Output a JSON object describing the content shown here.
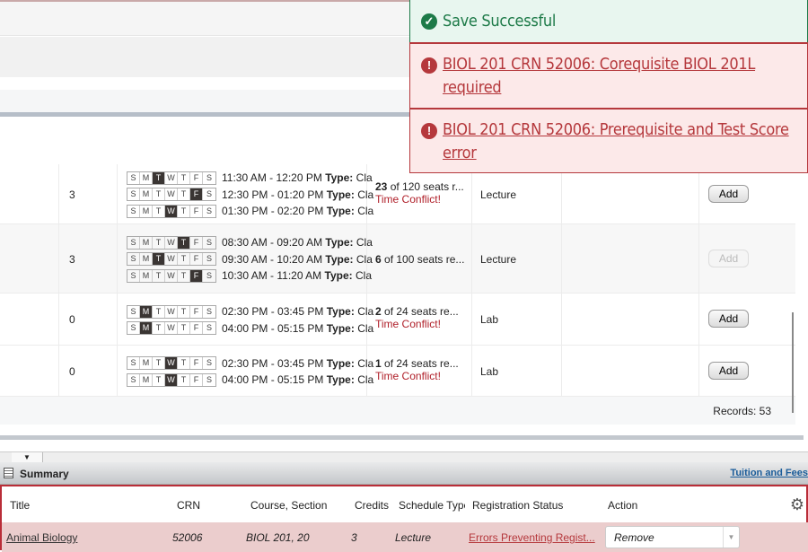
{
  "notifications": [
    {
      "type": "success",
      "text": "Save Successful",
      "icon": "check-circle-icon",
      "color": "#1d7a48"
    },
    {
      "type": "error",
      "text": "BIOL 201 CRN 52006: Corequisite BIOL 201L required",
      "icon": "exclamation-circle-icon",
      "color": "#b5383c"
    },
    {
      "type": "error",
      "text": "BIOL 201 CRN 52006: Prerequisite and Test Score error",
      "icon": "exclamation-circle-icon",
      "color": "#b5383c"
    }
  ],
  "day_letters": [
    "S",
    "M",
    "T",
    "W",
    "T",
    "F",
    "S"
  ],
  "results": {
    "rows": [
      {
        "credits": "3",
        "meetings": [
          {
            "day": 2,
            "time": "11:30 AM - 12:20 PM",
            "type_label": "Type:",
            "type": "Cla"
          },
          {
            "day": 5,
            "time": "12:30 PM - 01:20 PM",
            "type_label": "Type:",
            "type": "Cla"
          },
          {
            "day": 3,
            "time": "01:30 PM - 02:20 PM",
            "type_label": "Type:",
            "type": "Cla"
          }
        ],
        "seats_num": "23",
        "seats_rest": " of 120 seats r...",
        "conflict": "Time Conflict!",
        "schedule_type": "Lecture",
        "add": "Add",
        "add_disabled": false
      },
      {
        "credits": "3",
        "meetings": [
          {
            "day": 4,
            "time": "08:30 AM - 09:20 AM",
            "type_label": "Type:",
            "type": "Cla"
          },
          {
            "day": 2,
            "time": "09:30 AM - 10:20 AM",
            "type_label": "Type:",
            "type": "Cla"
          },
          {
            "day": 5,
            "time": "10:30 AM - 11:20 AM",
            "type_label": "Type:",
            "type": "Cla"
          }
        ],
        "seats_num": "6",
        "seats_rest": " of 100 seats re...",
        "conflict": "",
        "schedule_type": "Lecture",
        "add": "Add",
        "add_disabled": true
      },
      {
        "credits": "0",
        "meetings": [
          {
            "day": 1,
            "time": "02:30 PM - 03:45 PM",
            "type_label": "Type:",
            "type": "Cla"
          },
          {
            "day": 1,
            "time": "04:00 PM - 05:15 PM",
            "type_label": "Type:",
            "type": "Cla"
          }
        ],
        "seats_num": "2",
        "seats_rest": " of 24 seats re...",
        "conflict": "Time Conflict!",
        "schedule_type": "Lab",
        "add": "Add",
        "add_disabled": false
      },
      {
        "credits": "0",
        "meetings": [
          {
            "day": 3,
            "time": "02:30 PM - 03:45 PM",
            "type_label": "Type:",
            "type": "Cla"
          },
          {
            "day": 3,
            "time": "04:00 PM - 05:15 PM",
            "type_label": "Type:",
            "type": "Cla"
          }
        ],
        "seats_num": "1",
        "seats_rest": " of 24 seats re...",
        "conflict": "Time Conflict!",
        "schedule_type": "Lab",
        "add": "Add",
        "add_disabled": false
      }
    ],
    "records": "Records: 53"
  },
  "summary": {
    "title": "Summary",
    "tuition_link": "Tuition and Fees",
    "headers": [
      "Title",
      "CRN",
      "Course, Section",
      "Credits",
      "Schedule Type",
      "Registration Status",
      "Action"
    ],
    "row": {
      "title": "Animal Biology",
      "crn": "52006",
      "course_section": "BIOL 201, 20",
      "credits": "3",
      "schedule_type": "Lecture",
      "status": "Errors Preventing Regist...",
      "action": "Remove"
    }
  }
}
